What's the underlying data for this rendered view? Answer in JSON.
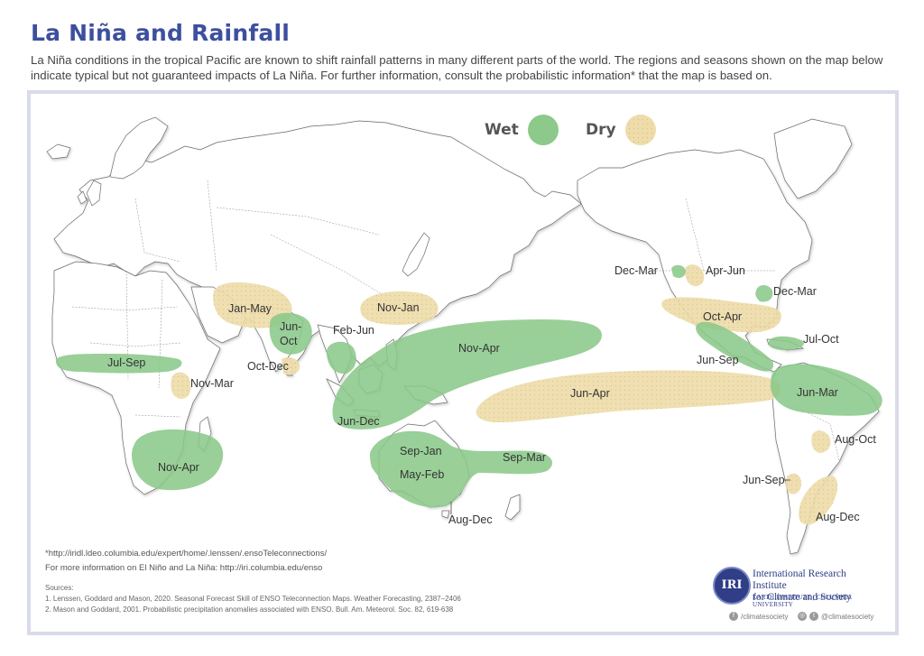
{
  "title": "La Niña and Rainfall",
  "intro": "La Niña conditions in the tropical Pacific are known to shift rainfall patterns in many different parts of the world. The regions and seasons shown on the map below indicate typical but not guaranteed impacts of La Niña. For further information, consult the probabilistic information* that the map is based on.",
  "legend": {
    "wet": "Wet",
    "dry": "Dry",
    "wet_color": "#8cc98a",
    "dry_color": "#eedcaa"
  },
  "regions": {
    "jul_sep": "Jul-Sep",
    "nov_mar_africa": "Nov-Mar",
    "nov_apr_africa": "Nov-Apr",
    "jan_may": "Jan-May",
    "jun_oct": "Jun-\nOct",
    "oct_dec": "Oct-Dec",
    "nov_jan": "Nov-Jan",
    "feb_jun": "Feb-Jun",
    "nov_apr_pacific": "Nov-Apr",
    "jun_dec": "Jun-Dec",
    "sep_jan": "Sep-Jan",
    "may_feb": "May-Feb",
    "sep_mar": "Sep-Mar",
    "aug_dec_aus": "Aug-Dec",
    "jun_apr": "Jun-Apr",
    "dec_mar_west": "Dec-Mar",
    "apr_jun": "Apr-Jun",
    "dec_mar_east": "Dec-Mar",
    "oct_apr": "Oct-Apr",
    "jul_oct": "Jul-Oct",
    "jun_sep_central": "Jun-Sep",
    "jun_mar": "Jun-Mar",
    "aug_oct": "Aug-Oct",
    "jun_sep_south": "Jun-Sep",
    "aug_dec_sa": "Aug-Dec"
  },
  "footnote_1": "*http://iridl.ldeo.columbia.edu/expert/home/.lenssen/.ensoTeleconnections/",
  "footnote_2": "For more information on El Niño and La Niña: http://iri.columbia.edu/enso",
  "sources_title": "Sources:",
  "source_1": "1. Lenssen, Goddard and Mason, 2020. Seasonal Forecast Skill of ENSO Teleconnection Maps. Weather Forecasting, 2387–2406",
  "source_2": "2. Mason and Goddard, 2001. Probabilistic precipitation anomalies associated with ENSO. Bull. Am. Meteorol. Soc. 82, 619-638",
  "logo": {
    "mark": "IRI",
    "line1": "International Research Institute",
    "line2": "for Climate and Society",
    "line3": "EARTH INSTITUTE | COLUMBIA UNIVERSITY"
  },
  "social": {
    "facebook": "/climatesociety",
    "instagram_twitter": "@climatesociety",
    "fb_icon": "facebook-icon",
    "ig_icon": "instagram-icon",
    "tw_icon": "twitter-icon"
  }
}
